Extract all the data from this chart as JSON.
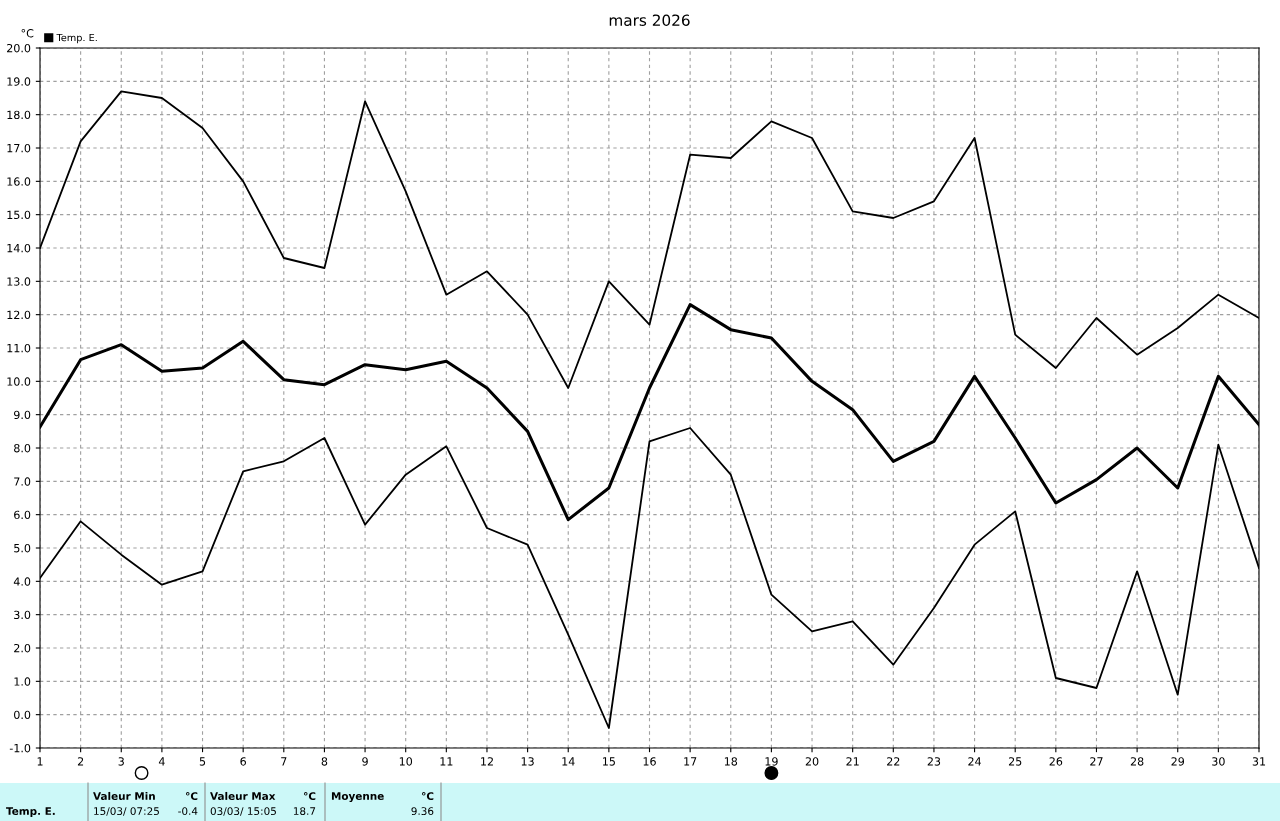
{
  "chart_data": {
    "type": "line",
    "title": "mars 2026",
    "ylabel": "°C",
    "legend": "top left",
    "grid": true,
    "x": [
      1,
      2,
      3,
      4,
      5,
      6,
      7,
      8,
      9,
      10,
      11,
      12,
      13,
      14,
      15,
      16,
      17,
      18,
      19,
      20,
      21,
      22,
      23,
      24,
      25,
      26,
      27,
      28,
      29,
      30,
      31
    ],
    "series": [
      {
        "name": "Temp. E.",
        "color": "#000000",
        "values": [
          8.63,
          10.65,
          11.1,
          10.3,
          10.4,
          11.2,
          10.05,
          9.9,
          10.5,
          10.35,
          10.6,
          9.8,
          8.5,
          5.85,
          6.8,
          9.8,
          12.3,
          11.55,
          11.3,
          10.0,
          9.15,
          7.6,
          8.2,
          10.15,
          8.3,
          6.35,
          7.05,
          8.0,
          6.8,
          10.15,
          8.7
        ]
      },
      {
        "color": "#000000",
        "values": [
          14.0,
          17.2,
          18.7,
          18.5,
          17.6,
          16.0,
          13.7,
          13.4,
          18.4,
          15.7,
          12.6,
          13.3,
          12.0,
          9.8,
          13.0,
          11.7,
          16.8,
          16.7,
          17.8,
          17.3,
          15.1,
          14.9,
          15.4,
          17.3,
          11.4,
          10.4,
          11.9,
          10.8,
          11.6,
          12.6,
          11.9
        ]
      },
      {
        "color": "#000000",
        "values": [
          4.1,
          5.8,
          4.8,
          3.9,
          4.3,
          7.3,
          7.6,
          8.3,
          5.7,
          7.2,
          8.05,
          5.6,
          5.1,
          2.4,
          -0.4,
          8.2,
          8.6,
          7.2,
          3.6,
          2.5,
          2.8,
          1.5,
          3.2,
          5.1,
          6.1,
          1.1,
          0.8,
          4.3,
          0.6,
          8.1,
          4.4
        ]
      }
    ],
    "xlim": [
      1,
      31
    ],
    "xticks": [
      1,
      2,
      3,
      4,
      5,
      6,
      7,
      8,
      9,
      10,
      11,
      12,
      13,
      14,
      15,
      16,
      17,
      18,
      19,
      20,
      21,
      22,
      23,
      24,
      25,
      26,
      27,
      28,
      29,
      30,
      31
    ],
    "ylim": [
      -1,
      20
    ],
    "yticks": [
      {
        "value": -1,
        "label": "-1.0"
      },
      {
        "value": 0,
        "label": "0.0"
      },
      {
        "value": 1,
        "label": "1.0"
      },
      {
        "value": 2,
        "label": "2.0"
      },
      {
        "value": 3,
        "label": "3.0"
      },
      {
        "value": 4,
        "label": "4.0"
      },
      {
        "value": 5,
        "label": "5.0"
      },
      {
        "value": 6,
        "label": "6.0"
      },
      {
        "value": 7,
        "label": "7.0"
      },
      {
        "value": 8,
        "label": "8.0"
      },
      {
        "value": 9,
        "label": "9.0"
      },
      {
        "value": 10,
        "label": "10.0"
      },
      {
        "value": 11,
        "label": "11.0"
      },
      {
        "value": 12,
        "label": "12.0"
      },
      {
        "value": 13,
        "label": "13.0"
      },
      {
        "value": 14,
        "label": "14.0"
      },
      {
        "value": 15,
        "label": "15.0"
      },
      {
        "value": 16,
        "label": "16.0"
      },
      {
        "value": 17,
        "label": "17.0"
      },
      {
        "value": 18,
        "label": "18.0"
      },
      {
        "value": 19,
        "label": "19.0"
      },
      {
        "value": 20,
        "label": "20.0"
      }
    ],
    "annotations": [
      "Temp. E.",
      "Valeur Min",
      "°C",
      "15/03/ 07:25",
      "-0.4",
      "Valeur Max",
      "°C",
      "03/03/ 15:05",
      "18.7",
      "Moyenne",
      "°C",
      "9.36"
    ]
  }
}
